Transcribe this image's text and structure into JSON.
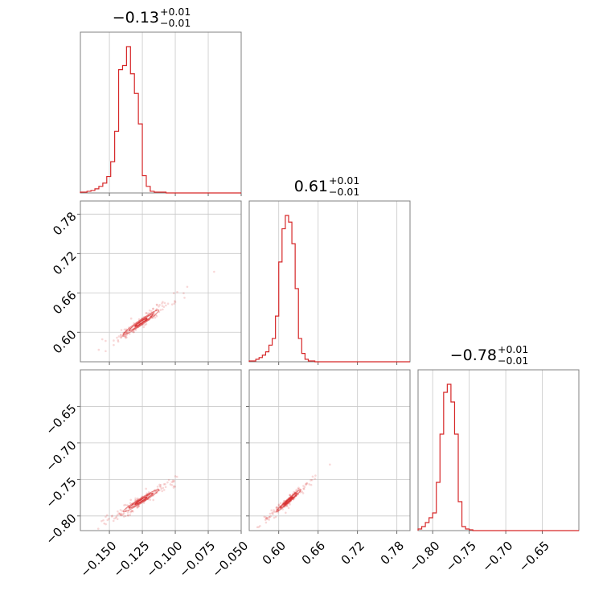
{
  "chart_data": {
    "type": "corner",
    "color": "#d62728",
    "grid": true,
    "parameters": [
      {
        "median": -0.126,
        "sigma": 0.0075,
        "range": [
          -0.172,
          -0.05
        ],
        "ticks": [
          -0.15,
          -0.125,
          -0.1,
          -0.075,
          -0.05
        ],
        "tick_labels": [
          "−0.150",
          "−0.125",
          "−0.100",
          "−0.075",
          "−0.050"
        ]
      },
      {
        "median": 0.615,
        "sigma": 0.0105,
        "range": [
          0.555,
          0.8
        ],
        "ticks": [
          0.6,
          0.66,
          0.72,
          0.78
        ],
        "tick_labels": [
          "0.60",
          "0.66",
          "0.72",
          "0.78"
        ]
      },
      {
        "median": -0.779,
        "sigma": 0.0085,
        "range": [
          -0.82,
          -0.6
        ],
        "ticks": [
          -0.8,
          -0.75,
          -0.7,
          -0.65
        ],
        "tick_labels": [
          "−0.80",
          "−0.75",
          "−0.70",
          "−0.65"
        ]
      }
    ],
    "titles": [
      {
        "main": "−0.13",
        "sup": "+0.01",
        "sub": "−0.01"
      },
      {
        "main": "0.61",
        "sup": "+0.01",
        "sub": "−0.01"
      },
      {
        "main": "−0.78",
        "sup": "+0.01",
        "sub": "−0.01"
      }
    ],
    "histograms": [
      {
        "bin_edges": [
          -0.172,
          -0.167,
          -0.164,
          -0.161,
          -0.158,
          -0.155,
          -0.152,
          -0.149,
          -0.146,
          -0.143,
          -0.14,
          -0.137,
          -0.134,
          -0.131,
          -0.128,
          -0.125,
          -0.122,
          -0.119,
          -0.116,
          -0.113,
          -0.11,
          -0.107,
          -0.104,
          -0.101,
          -0.098
        ],
        "counts": [
          1,
          2,
          3,
          5,
          8,
          12,
          20,
          38,
          75,
          150,
          155,
          178,
          145,
          121,
          84,
          21,
          8,
          2,
          1,
          1,
          1,
          0,
          0,
          0
        ]
      },
      {
        "bin_edges": [
          0.555,
          0.56,
          0.565,
          0.57,
          0.575,
          0.58,
          0.585,
          0.59,
          0.595,
          0.6,
          0.605,
          0.61,
          0.615,
          0.62,
          0.625,
          0.63,
          0.635,
          0.64,
          0.645,
          0.65,
          0.655,
          0.66
        ],
        "counts": [
          1,
          1,
          3,
          5,
          8,
          12,
          20,
          28,
          55,
          120,
          160,
          176,
          168,
          142,
          88,
          28,
          10,
          3,
          1,
          1,
          0
        ]
      },
      {
        "bin_edges": [
          -0.82,
          -0.815,
          -0.81,
          -0.805,
          -0.8,
          -0.795,
          -0.79,
          -0.785,
          -0.78,
          -0.775,
          -0.77,
          -0.765,
          -0.76,
          -0.755,
          -0.75,
          -0.745,
          -0.74
        ],
        "counts": [
          2,
          5,
          10,
          16,
          22,
          60,
          120,
          172,
          182,
          160,
          120,
          36,
          5,
          2,
          1,
          0
        ]
      }
    ],
    "pair_panels": [
      {
        "x": 0,
        "y": 1,
        "rho": 0.97
      },
      {
        "x": 0,
        "y": 2,
        "rho": 0.97
      },
      {
        "x": 1,
        "y": 2,
        "rho": 0.98
      }
    ]
  }
}
